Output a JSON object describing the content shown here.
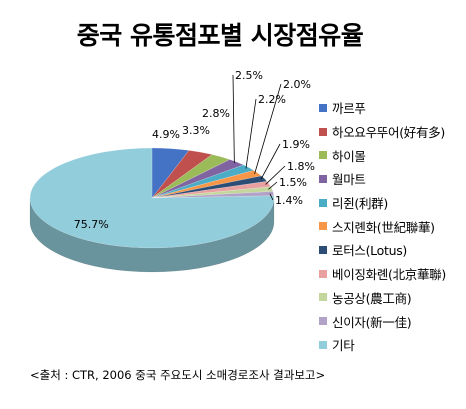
{
  "chart_data": {
    "type": "pie",
    "title": "중국 유통점포별 시장점유율",
    "categories": [
      "까르푸",
      "하오요우뚜어(好有多)",
      "하이몰",
      "월마트",
      "리쥔(利群)",
      "스지롄화(世紀聯華)",
      "로터스(Lotus)",
      "베이징화롄(北京華聯)",
      "농공상(農工商)",
      "신이자(新一佳)",
      "기타"
    ],
    "values": [
      4.9,
      3.3,
      2.8,
      2.5,
      2.2,
      2.0,
      1.9,
      1.8,
      1.5,
      1.4,
      75.7
    ],
    "data_labels": [
      "4.9%",
      "3.3%",
      "2.8%",
      "2.5%",
      "2.2%",
      "2.0%",
      "1.9%",
      "1.8%",
      "1.5%",
      "1.4%",
      "75.7%"
    ],
    "colors": [
      "#4472C4",
      "#C0504D",
      "#9BBB59",
      "#8064A2",
      "#4BACC6",
      "#F79646",
      "#2C4D75",
      "#E8A1A0",
      "#C3D69B",
      "#B3A2C7",
      "#92CDDC"
    ],
    "legend_position": "right",
    "style": "3d-pie"
  },
  "source_note": "<출처 : CTR, 2006 중국 주요도시 소매경로조사 결과보고>"
}
